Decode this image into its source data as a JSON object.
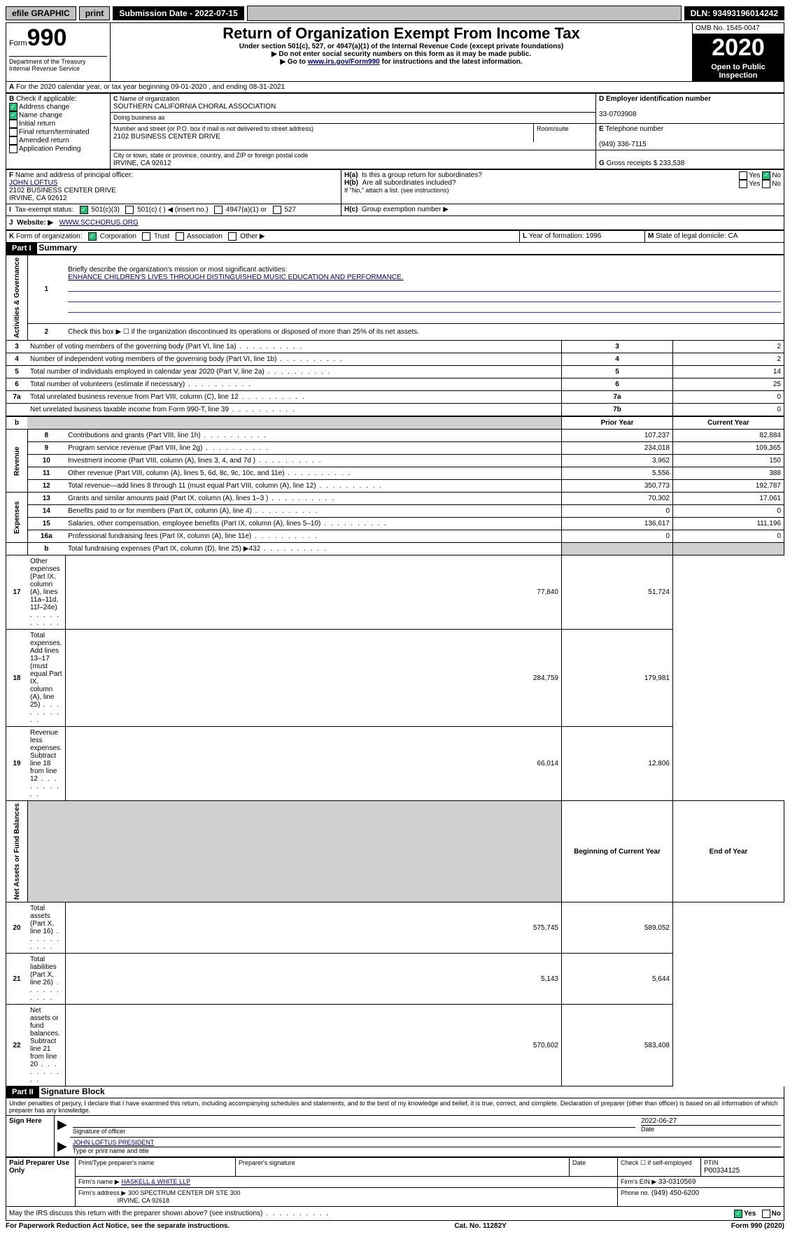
{
  "topbar": {
    "efile": "efile GRAPHIC",
    "print": "print",
    "sub_label": "Submission Date - 2022-07-15",
    "dln": "DLN: 93493196014242"
  },
  "header": {
    "form": "Form",
    "num": "990",
    "dept": "Department of the Treasury\nInternal Revenue Service",
    "title": "Return of Organization Exempt From Income Tax",
    "subtitle": "Under section 501(c), 527, or 4947(a)(1) of the Internal Revenue Code (except private foundations)",
    "arrow1": "▶ Do not enter social security numbers on this form as it may be made public.",
    "arrow2_pre": "▶ Go to ",
    "arrow2_link": "www.irs.gov/Form990",
    "arrow2_post": " for instructions and the latest information.",
    "omb": "OMB No. 1545-0047",
    "year": "2020",
    "open": "Open to Public Inspection"
  },
  "A": {
    "text": "For the 2020 calendar year, or tax year beginning 09-01-2020   , and ending 08-31-2021"
  },
  "B": {
    "label": "Check if applicable:",
    "addr": "Address change",
    "name": "Name change",
    "init": "Initial return",
    "final": "Final return/terminated",
    "amend": "Amended return",
    "app": "Application Pending"
  },
  "C": {
    "name_label": "Name of organization",
    "name": "SOUTHERN CALIFORNIA CHORAL ASSOCIATION",
    "dba_label": "Doing business as",
    "addr_label": "Number and street (or P.O. box if mail is not delivered to street address)",
    "room_label": "Room/suite",
    "addr": "2102 BUSINESS CENTER DRIVE",
    "city_label": "City or town, state or province, country, and ZIP or foreign postal code",
    "city": "IRVINE, CA  92612"
  },
  "D": {
    "label": "Employer identification number",
    "val": "33-0703908"
  },
  "E": {
    "label": "Telephone number",
    "val": "(949) 336-7115"
  },
  "G": {
    "label": "Gross receipts $",
    "val": "233,538"
  },
  "F": {
    "label": "Name and address of principal officer:",
    "name": "JOHN LOFTUS",
    "addr1": "2102 BUSINESS CENTER DRIVE",
    "addr2": "IRVINE, CA  92612"
  },
  "H": {
    "a": "Is this a group return for subordinates?",
    "b": "Are all subordinates included?",
    "b_note": "If \"No,\" attach a list. (see instructions)",
    "c": "Group exemption number ▶",
    "yes": "Yes",
    "no": "No"
  },
  "I": {
    "label": "Tax-exempt status:",
    "c3": "501(c)(3)",
    "c": "501(c) (  ) ◀ (insert no.)",
    "a1": "4947(a)(1) or",
    "s527": "527"
  },
  "J": {
    "label": "Website: ▶",
    "val": "WWW.SCCHORUS.ORG"
  },
  "K": {
    "label": "Form of organization:",
    "corp": "Corporation",
    "trust": "Trust",
    "assoc": "Association",
    "other": "Other ▶"
  },
  "L": {
    "label": "Year of formation:",
    "val": "1996"
  },
  "M": {
    "label": "State of legal domicile:",
    "val": "CA"
  },
  "partI": {
    "hdr": "Part I",
    "title": "Summary",
    "side_ag": "Activities & Governance",
    "side_rev": "Revenue",
    "side_exp": "Expenses",
    "side_na": "Net Assets or Fund Balances",
    "l1_label": "Briefly describe the organization's mission or most significant activities:",
    "l1_val": "ENHANCE CHILDREN'S LIVES THROUGH DISTINGUISHED MUSIC EDUCATION AND PERFORMANCE.",
    "l2": "Check this box ▶ ☐  if the organization discontinued its operations or disposed of more than 25% of its net assets.",
    "lines_ag": [
      {
        "n": "3",
        "t": "Number of voting members of the governing body (Part VI, line 1a)",
        "s": "3",
        "v": "2"
      },
      {
        "n": "4",
        "t": "Number of independent voting members of the governing body (Part VI, line 1b)",
        "s": "4",
        "v": "2"
      },
      {
        "n": "5",
        "t": "Total number of individuals employed in calendar year 2020 (Part V, line 2a)",
        "s": "5",
        "v": "14"
      },
      {
        "n": "6",
        "t": "Total number of volunteers (estimate if necessary)",
        "s": "6",
        "v": "25"
      },
      {
        "n": "7a",
        "t": "Total unrelated business revenue from Part VIII, column (C), line 12",
        "s": "7a",
        "v": "0"
      },
      {
        "n": "",
        "t": "Net unrelated business taxable income from Form 990-T, line 39",
        "s": "7b",
        "v": "0"
      }
    ],
    "prior_hdr": "Prior Year",
    "curr_hdr": "Current Year",
    "lines_rev": [
      {
        "n": "8",
        "t": "Contributions and grants (Part VIII, line 1h)",
        "p": "107,237",
        "c": "82,884"
      },
      {
        "n": "9",
        "t": "Program service revenue (Part VIII, line 2g)",
        "p": "234,018",
        "c": "109,365"
      },
      {
        "n": "10",
        "t": "Investment income (Part VIII, column (A), lines 3, 4, and 7d )",
        "p": "3,962",
        "c": "150"
      },
      {
        "n": "11",
        "t": "Other revenue (Part VIII, column (A), lines 5, 6d, 8c, 9c, 10c, and 11e)",
        "p": "5,556",
        "c": "388"
      },
      {
        "n": "12",
        "t": "Total revenue—add lines 8 through 11 (must equal Part VIII, column (A), line 12)",
        "p": "350,773",
        "c": "192,787"
      }
    ],
    "lines_exp": [
      {
        "n": "13",
        "t": "Grants and similar amounts paid (Part IX, column (A), lines 1–3 )",
        "p": "70,302",
        "c": "17,061"
      },
      {
        "n": "14",
        "t": "Benefits paid to or for members (Part IX, column (A), line 4)",
        "p": "0",
        "c": "0"
      },
      {
        "n": "15",
        "t": "Salaries, other compensation, employee benefits (Part IX, column (A), lines 5–10)",
        "p": "136,617",
        "c": "111,196"
      },
      {
        "n": "16a",
        "t": "Professional fundraising fees (Part IX, column (A), line 11e)",
        "p": "0",
        "c": "0"
      }
    ],
    "l16b": "Total fundraising expenses (Part IX, column (D), line 25) ▶432",
    "lines_exp2": [
      {
        "n": "17",
        "t": "Other expenses (Part IX, column (A), lines 11a–11d, 11f–24e)",
        "p": "77,840",
        "c": "51,724"
      },
      {
        "n": "18",
        "t": "Total expenses. Add lines 13–17 (must equal Part IX, column (A), line 25)",
        "p": "284,759",
        "c": "179,981"
      },
      {
        "n": "19",
        "t": "Revenue less expenses. Subtract line 18 from line 12",
        "p": "66,014",
        "c": "12,806"
      }
    ],
    "beg_hdr": "Beginning of Current Year",
    "end_hdr": "End of Year",
    "lines_na": [
      {
        "n": "20",
        "t": "Total assets (Part X, line 16)",
        "p": "575,745",
        "c": "589,052"
      },
      {
        "n": "21",
        "t": "Total liabilities (Part X, line 26)",
        "p": "5,143",
        "c": "5,644"
      },
      {
        "n": "22",
        "t": "Net assets or fund balances. Subtract line 21 from line 20",
        "p": "570,602",
        "c": "583,408"
      }
    ]
  },
  "partII": {
    "hdr": "Part II",
    "title": "Signature Block",
    "decl": "Under penalties of perjury, I declare that I have examined this return, including accompanying schedules and statements, and to the best of my knowledge and belief, it is true, correct, and complete. Declaration of preparer (other than officer) is based on all information of which preparer has any knowledge.",
    "sign_here": "Sign Here",
    "sig_officer": "Signature of officer",
    "date": "2022-06-27",
    "date_label": "Date",
    "officer_name": "JOHN LOFTUS  PRESIDENT",
    "type_name": "Type or print name and title",
    "paid": "Paid Preparer Use Only",
    "prep_name_label": "Print/Type preparer's name",
    "prep_sig_label": "Preparer's signature",
    "prep_date_label": "Date",
    "check_se": "Check ☐ if self-employed",
    "ptin_label": "PTIN",
    "ptin": "P00334125",
    "firm_name_label": "Firm's name    ▶",
    "firm_name": "HASKELL & WHITE LLP",
    "firm_ein_label": "Firm's EIN ▶",
    "firm_ein": "33-0310569",
    "firm_addr_label": "Firm's address ▶",
    "firm_addr1": "300 SPECTRUM CENTER DR STE 300",
    "firm_addr2": "IRVINE, CA  92618",
    "phone_label": "Phone no.",
    "phone": "(949) 450-6200",
    "irs_q": "May the IRS discuss this return with the preparer shown above? (see instructions)"
  },
  "footer": {
    "pra": "For Paperwork Reduction Act Notice, see the separate instructions.",
    "cat": "Cat. No. 11282Y",
    "form": "Form 990 (2020)"
  }
}
